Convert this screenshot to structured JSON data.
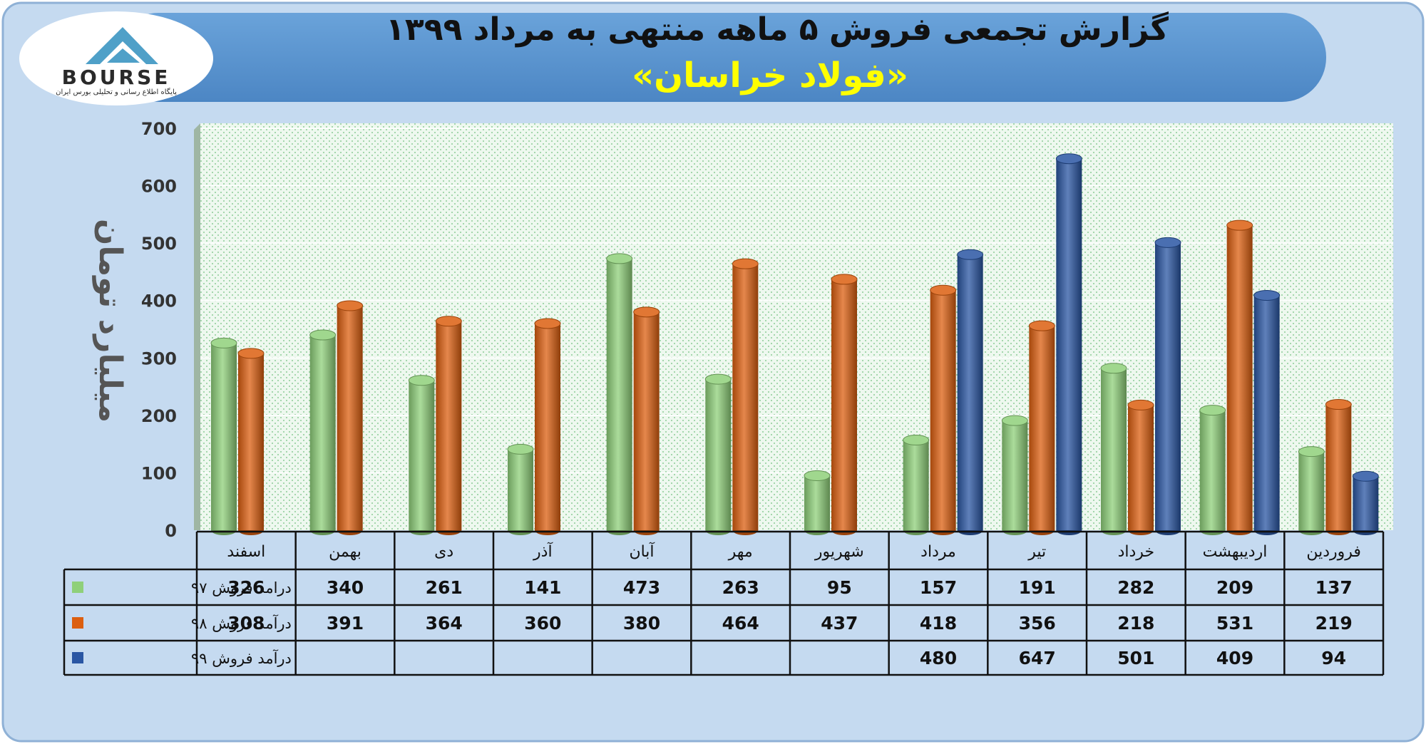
{
  "header": {
    "title": "گزارش تجمعی فروش ۵ ماهه منتهی به مرداد ۱۳۹۹",
    "subtitle": "«فولاد خراسان»"
  },
  "logo": {
    "name": "BOURSE",
    "tagline": "پایگاه اطلاع رسانی و تحلیلی بورس ایران"
  },
  "colors": {
    "panel_bg": "#c5daf0",
    "header_band": "#5b94cf",
    "title_text": "#111111",
    "subtitle_text": "#ffff00",
    "plot_bg": "#edf7ee",
    "series_97": "#8fd07a",
    "series_98": "#dc5f10",
    "series_99": "#2a56a3"
  },
  "chart_data": {
    "type": "bar",
    "ylabel": "میلیارد تومان",
    "ylim": [
      0,
      700
    ],
    "yticks": [
      "0",
      "100",
      "200",
      "300",
      "400",
      "500",
      "600",
      "700"
    ],
    "categories": [
      "فروردین",
      "اردیبهشت",
      "خرداد",
      "تیر",
      "مرداد",
      "شهریور",
      "مهر",
      "آبان",
      "آذر",
      "دی",
      "بهمن",
      "اسفند"
    ],
    "series": [
      {
        "name": "درامد فروش ۹۷",
        "color": "#8fd07a",
        "values": [
          137,
          209,
          282,
          191,
          157,
          95,
          263,
          473,
          141,
          261,
          340,
          326
        ]
      },
      {
        "name": "درآمد فروش ۹۸",
        "color": "#dc5f10",
        "values": [
          219,
          531,
          218,
          356,
          418,
          437,
          464,
          380,
          360,
          364,
          391,
          308
        ]
      },
      {
        "name": "درآمد فروش ۹۹",
        "color": "#2a56a3",
        "values": [
          94,
          409,
          501,
          647,
          480,
          null,
          null,
          null,
          null,
          null,
          null,
          null
        ]
      }
    ],
    "grid": true,
    "legend": "data-table"
  }
}
